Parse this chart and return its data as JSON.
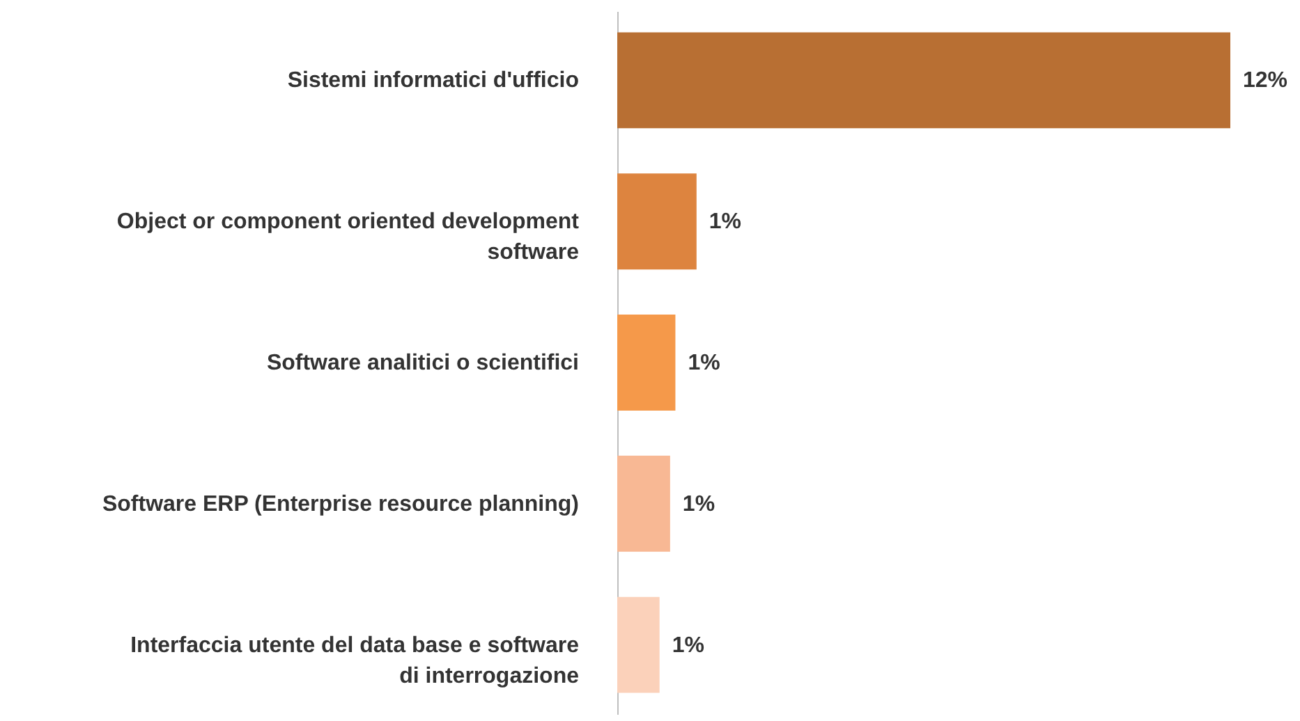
{
  "chart_data": {
    "type": "bar",
    "orientation": "horizontal",
    "categories": [
      "Sistemi informatici d'ufficio",
      "Object or component oriented development software",
      "Software analitici o scientifici",
      "Software ERP (Enterprise resource planning)",
      "Interfaccia utente del data base e software di interrogazione"
    ],
    "values": [
      11.6,
      1.5,
      1.1,
      1.0,
      0.8
    ],
    "value_labels": [
      "12%",
      "1%",
      "1%",
      "1%",
      "1%"
    ],
    "colors": [
      "#b86f33",
      "#dd843f",
      "#f5994a",
      "#f8b894",
      "#fbd1ba"
    ]
  }
}
